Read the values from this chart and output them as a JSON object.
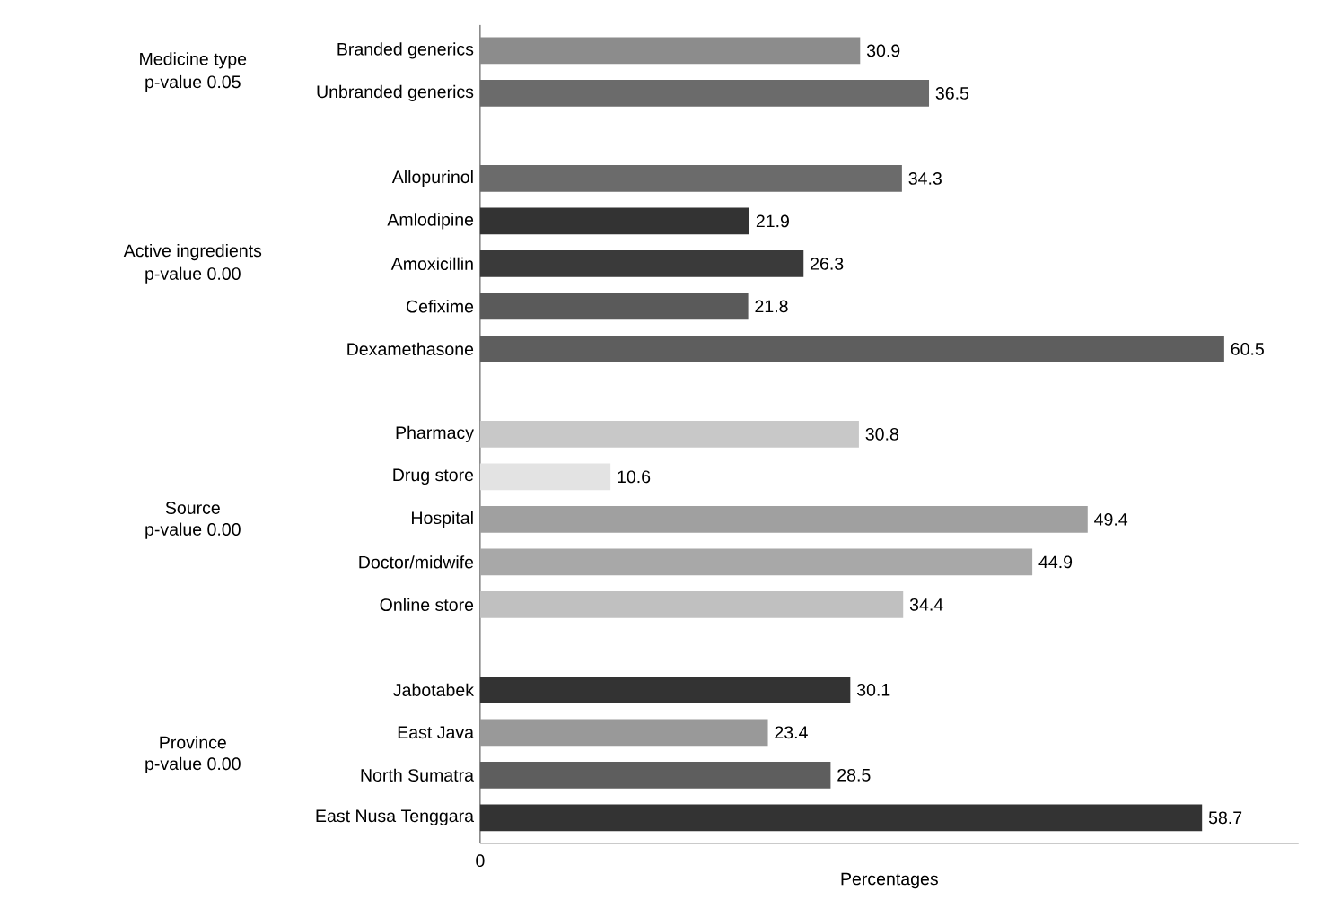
{
  "chart_data": {
    "type": "bar",
    "orientation": "horizontal",
    "xlabel": "Percentages",
    "categories": [
      "Branded generics",
      "Unbranded generics",
      null,
      "Allopurinol",
      "Amlodipine",
      "Amoxicillin",
      "Cefixime",
      "Dexamethasone",
      null,
      "Pharmacy",
      "Drug store",
      "Hospital",
      "Doctor/midwife",
      "Online store",
      null,
      "Jabotabek",
      "East Java",
      "North Sumatra",
      "East Nusa Tenggara"
    ],
    "values": [
      30.9,
      36.5,
      null,
      34.3,
      21.9,
      26.3,
      21.8,
      60.5,
      null,
      30.8,
      10.6,
      49.4,
      44.9,
      34.4,
      null,
      30.1,
      23.4,
      28.5,
      58.7
    ],
    "colors": [
      "#8c8c8c",
      "#6b6b6b",
      "#ffffff",
      "#6b6b6b",
      "#333333",
      "#3a3a3a",
      "#5a5a5a",
      "#5e5e5e",
      "#ffffff",
      "#c8c8c8",
      "#e3e3e3",
      "#a0a0a0",
      "#a8a8a8",
      "#c0c0c0",
      "#ffffff",
      "#333333",
      "#999999",
      "#5e5e5e",
      "#333333"
    ],
    "data_labels": true,
    "annotations": [
      "Medicine type",
      "p-value 0.05",
      "Active ingredients",
      "p-value 0.00",
      "Source",
      "p-value 0.00",
      "Province",
      "p-value 0.00",
      "0"
    ]
  }
}
